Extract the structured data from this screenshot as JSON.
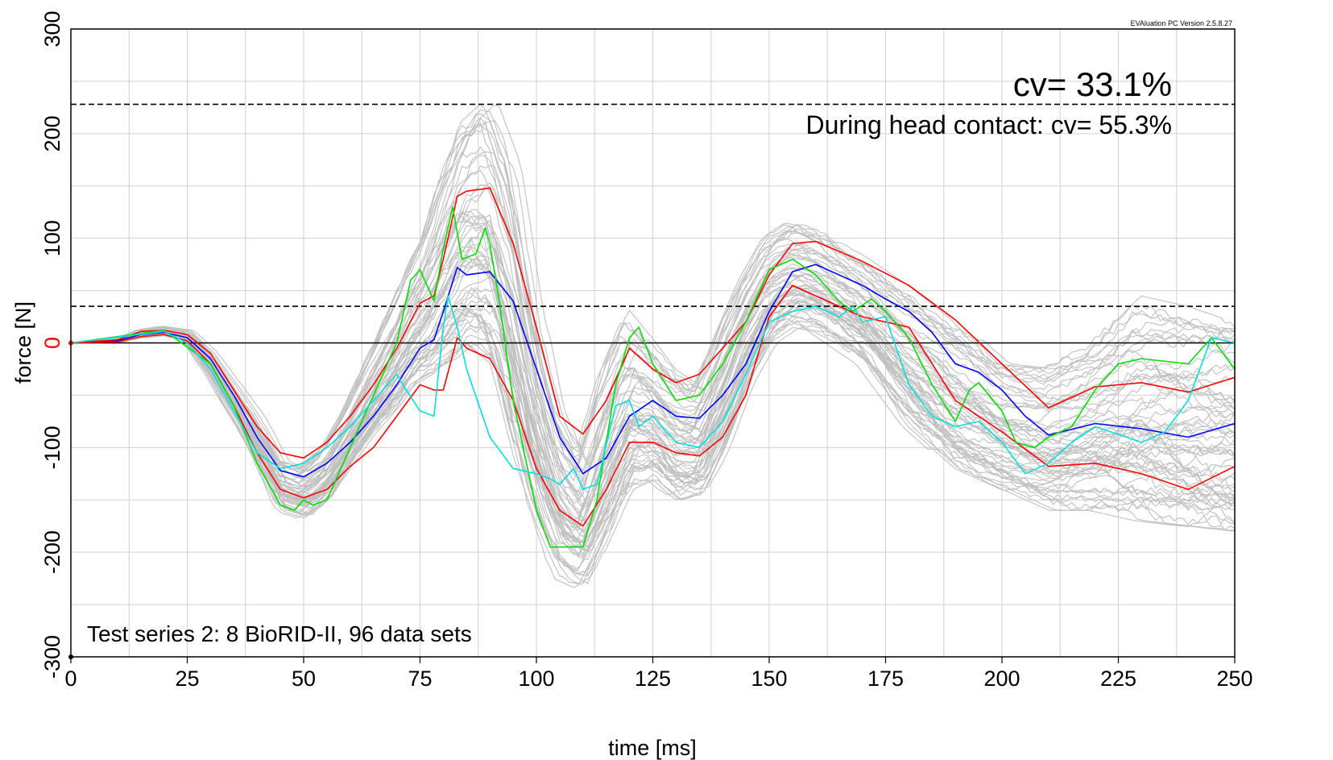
{
  "chart_data": {
    "type": "line",
    "version_text": "EVAluation PC Version 2.5.8.27",
    "xlabel": "time [ms]",
    "ylabel": "force [N]",
    "xlim": [
      0,
      250
    ],
    "ylim": [
      -300,
      300
    ],
    "x_ticks": [
      0,
      25,
      50,
      75,
      100,
      125,
      150,
      175,
      200,
      225,
      250
    ],
    "y_ticks": [
      -300,
      -200,
      -100,
      0,
      100,
      200,
      300
    ],
    "x_minor_step": 12.5,
    "y_minor_step": 50,
    "grid": true,
    "zero_tick_color": "#ff0000",
    "annotations": {
      "cv_total": "cv= 33.1%",
      "cv_head_contact": "During head contact: cv= 55.3%",
      "test_series": "Test series 2: 8 BioRID-II, 96 data sets"
    },
    "reference_lines": [
      {
        "y": 228,
        "style": "dashed",
        "color": "#000000"
      },
      {
        "y": 35,
        "style": "dashed",
        "color": "#000000"
      },
      {
        "y": 0,
        "style": "solid",
        "color": "#000000"
      }
    ],
    "background_band": {
      "color": "#c0c0c0",
      "count": 96,
      "x": [
        0,
        10,
        15,
        20,
        25,
        30,
        40,
        45,
        50,
        55,
        60,
        65,
        70,
        73,
        77,
        80,
        85,
        90,
        95,
        100,
        105,
        110,
        115,
        120,
        125,
        130,
        135,
        140,
        145,
        150,
        155,
        160,
        170,
        180,
        190,
        200,
        210,
        220,
        230,
        240,
        250
      ],
      "upper": [
        0,
        4,
        13,
        16,
        12,
        -10,
        -70,
        -110,
        -118,
        -100,
        -60,
        -10,
        40,
        70,
        110,
        155,
        210,
        230,
        170,
        30,
        -60,
        -100,
        -20,
        32,
        5,
        -25,
        -40,
        10,
        60,
        100,
        115,
        110,
        85,
        55,
        20,
        -20,
        -25,
        0,
        45,
        35,
        20
      ],
      "lower": [
        0,
        0,
        5,
        7,
        2,
        -30,
        -110,
        -160,
        -168,
        -150,
        -115,
        -85,
        -60,
        -40,
        -30,
        -20,
        0,
        -20,
        -110,
        -175,
        -225,
        -235,
        -190,
        -140,
        -130,
        -150,
        -145,
        -100,
        -40,
        0,
        15,
        10,
        -20,
        -80,
        -120,
        -140,
        -160,
        -160,
        -170,
        -175,
        -180
      ]
    },
    "series": [
      {
        "color": "#0000ff",
        "x": [
          0,
          10,
          15,
          20,
          25,
          30,
          35,
          40,
          45,
          50,
          55,
          60,
          65,
          70,
          75,
          78,
          80,
          83,
          85,
          90,
          95,
          100,
          105,
          110,
          115,
          120,
          125,
          130,
          135,
          140,
          145,
          150,
          155,
          160,
          170,
          175,
          180,
          185,
          190,
          195,
          200,
          205,
          210,
          220,
          230,
          240,
          250
        ],
        "y": [
          0,
          2,
          8,
          10,
          5,
          -15,
          -50,
          -90,
          -122,
          -128,
          -115,
          -95,
          -70,
          -40,
          -5,
          3,
          30,
          72,
          65,
          68,
          40,
          -25,
          -90,
          -125,
          -110,
          -70,
          -55,
          -70,
          -72,
          -50,
          -20,
          30,
          68,
          75,
          55,
          42,
          30,
          10,
          -20,
          -28,
          -45,
          -70,
          -88,
          -77,
          -82,
          -90,
          -77
        ]
      },
      {
        "color": "#ff0000",
        "x": [
          0,
          10,
          15,
          20,
          25,
          30,
          35,
          40,
          45,
          50,
          55,
          60,
          65,
          70,
          75,
          78,
          80,
          83,
          85,
          90,
          95,
          100,
          105,
          110,
          115,
          120,
          125,
          130,
          135,
          140,
          145,
          150,
          155,
          160,
          170,
          180,
          190,
          200,
          210,
          220,
          230,
          240,
          250
        ],
        "y": [
          0,
          3,
          11,
          12,
          8,
          -10,
          -45,
          -80,
          -105,
          -110,
          -95,
          -70,
          -40,
          -5,
          38,
          45,
          80,
          140,
          145,
          148,
          95,
          15,
          -70,
          -87,
          -55,
          -5,
          -25,
          -38,
          -30,
          -5,
          20,
          65,
          95,
          97,
          78,
          55,
          22,
          -20,
          -62,
          -42,
          -38,
          -47,
          -33
        ]
      },
      {
        "color": "#ff0000",
        "x": [
          0,
          10,
          15,
          20,
          25,
          30,
          35,
          40,
          45,
          50,
          55,
          60,
          65,
          70,
          75,
          78,
          80,
          83,
          85,
          90,
          95,
          100,
          105,
          110,
          115,
          120,
          125,
          130,
          135,
          140,
          145,
          150,
          155,
          160,
          170,
          180,
          190,
          195,
          200,
          210,
          220,
          230,
          240,
          250
        ],
        "y": [
          0,
          1,
          6,
          8,
          2,
          -20,
          -60,
          -105,
          -140,
          -148,
          -140,
          -118,
          -100,
          -70,
          -40,
          -45,
          -45,
          5,
          -5,
          -15,
          -55,
          -120,
          -160,
          -175,
          -140,
          -95,
          -95,
          -105,
          -108,
          -90,
          -50,
          25,
          55,
          45,
          25,
          15,
          -55,
          -70,
          -85,
          -118,
          -115,
          -125,
          -140,
          -118
        ]
      },
      {
        "color": "#00e000",
        "x": [
          0,
          20,
          30,
          35,
          40,
          45,
          48,
          50,
          52,
          55,
          60,
          65,
          70,
          73,
          75,
          78,
          80,
          82,
          84,
          87,
          89,
          90,
          92,
          95,
          100,
          103,
          105,
          110,
          113,
          117,
          120,
          122,
          125,
          130,
          135,
          140,
          145,
          150,
          155,
          160,
          165,
          168,
          172,
          175,
          180,
          185,
          190,
          193,
          195,
          200,
          203,
          207,
          210,
          215,
          220,
          225,
          230,
          240,
          245,
          250
        ],
        "y": [
          0,
          12,
          -20,
          -60,
          -115,
          -155,
          -160,
          -150,
          -155,
          -150,
          -100,
          -50,
          0,
          60,
          70,
          40,
          90,
          130,
          80,
          85,
          110,
          95,
          40,
          -55,
          -160,
          -195,
          -195,
          -195,
          -150,
          -40,
          5,
          15,
          -20,
          -55,
          -50,
          -20,
          20,
          70,
          80,
          65,
          40,
          30,
          42,
          30,
          5,
          -40,
          -75,
          -45,
          -38,
          -65,
          -95,
          -100,
          -90,
          -80,
          -45,
          -20,
          -15,
          -20,
          5,
          -25
        ]
      },
      {
        "color": "#00e0e0",
        "x": [
          0,
          20,
          25,
          30,
          35,
          40,
          45,
          50,
          55,
          60,
          65,
          70,
          72,
          75,
          78,
          80,
          81,
          83,
          85,
          90,
          95,
          100,
          103,
          105,
          108,
          110,
          113,
          117,
          120,
          122,
          125,
          130,
          135,
          140,
          145,
          150,
          155,
          160,
          165,
          168,
          170,
          175,
          180,
          185,
          190,
          195,
          200,
          205,
          210,
          215,
          220,
          230,
          235,
          240,
          245,
          250
        ],
        "y": [
          0,
          11,
          0,
          -25,
          -65,
          -105,
          -120,
          -115,
          -100,
          -80,
          -55,
          -30,
          -45,
          -65,
          -70,
          15,
          45,
          15,
          -25,
          -90,
          -120,
          -125,
          -130,
          -135,
          -120,
          -140,
          -135,
          -60,
          -55,
          -80,
          -70,
          -95,
          -100,
          -75,
          -30,
          20,
          30,
          35,
          25,
          35,
          20,
          25,
          -40,
          -70,
          -80,
          -75,
          -95,
          -125,
          -115,
          -95,
          -80,
          -95,
          -85,
          -55,
          5,
          0
        ]
      }
    ]
  }
}
